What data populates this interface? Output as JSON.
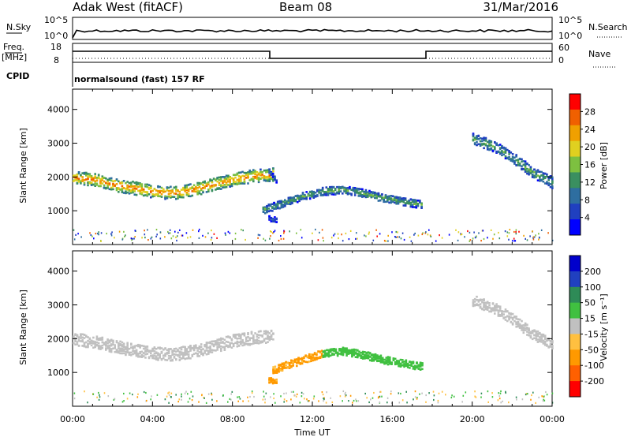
{
  "header": {
    "site": "Adak West (fitACF)",
    "beam": "Beam 08",
    "date": "31/Mar/2016"
  },
  "strip": {
    "nsky_label": "N.Sky",
    "nsearch_label": "N.Search",
    "freq_label_1": "Freq.",
    "freq_label_2": "[MHz]",
    "nave_label": "Nave",
    "cpid_label": "CPID",
    "cpid_text": "normalsound (fast) 157 RF",
    "noise_ticks_left": [
      "10^5",
      "10^0"
    ],
    "noise_ticks_right": [
      "10^5",
      "10^0"
    ],
    "freq_ticks": [
      "18",
      "8"
    ],
    "nave_ticks": [
      "60",
      "0"
    ]
  },
  "colors": {
    "power_scale": [
      "#0000ff",
      "#2040c0",
      "#2e6ea0",
      "#3a8f60",
      "#7dc040",
      "#e0d020",
      "#f0a000",
      "#f06000",
      "#ff0000"
    ],
    "velocity_scale": [
      "#ff0000",
      "#ff6000",
      "#ff9900",
      "#ffc040",
      "#c0c0c0",
      "#40c040",
      "#2e8b57",
      "#2040c0",
      "#0000cc"
    ]
  },
  "chart_data": [
    {
      "type": "heatmap",
      "title": "",
      "xlabel": "",
      "ylabel": "Slant Range [km]",
      "xlim": [
        "00:00",
        "24:00"
      ],
      "ylim": [
        0,
        4600
      ],
      "yticks": [
        1000,
        2000,
        3000,
        4000
      ],
      "colorbar": {
        "label": "Power [dB]",
        "ticks": [
          4,
          8,
          12,
          16,
          20,
          24,
          28
        ]
      },
      "features": [
        {
          "name": "band-1",
          "points": [
            [
              0.0,
              2000
            ],
            [
              1.0,
              1950
            ],
            [
              2.0,
              1800
            ],
            [
              3.0,
              1700
            ],
            [
              4.0,
              1600
            ],
            [
              5.0,
              1550
            ],
            [
              6.0,
              1650
            ],
            [
              7.0,
              1800
            ],
            [
              8.0,
              1950
            ],
            [
              9.0,
              2050
            ],
            [
              10.0,
              2100
            ]
          ],
          "width": 380,
          "peak_power": 26
        },
        {
          "name": "band-2",
          "points": [
            [
              9.5,
              1050
            ],
            [
              10.5,
              1250
            ],
            [
              11.5,
              1450
            ],
            [
              12.5,
              1600
            ],
            [
              13.5,
              1650
            ],
            [
              14.5,
              1550
            ],
            [
              15.5,
              1400
            ],
            [
              16.5,
              1300
            ],
            [
              17.5,
              1200
            ]
          ],
          "width": 230,
          "peak_power": 14
        },
        {
          "name": "band-3",
          "points": [
            [
              9.8,
              2200
            ],
            [
              10.2,
              1900
            ]
          ],
          "width": 150,
          "peak_power": 8
        },
        {
          "name": "band-4",
          "points": [
            [
              9.8,
              800
            ],
            [
              10.2,
              750
            ]
          ],
          "width": 150,
          "peak_power": 6
        },
        {
          "name": "band-5",
          "points": [
            [
              20.0,
              3150
            ],
            [
              21.0,
              2950
            ],
            [
              22.0,
              2600
            ],
            [
              23.0,
              2150
            ],
            [
              24.0,
              1850
            ]
          ],
          "width": 330,
          "peak_power": 14
        }
      ]
    },
    {
      "type": "heatmap",
      "title": "",
      "xlabel": "Time UT",
      "ylabel": "Slant Range [km]",
      "xlim": [
        "00:00",
        "24:00"
      ],
      "ylim": [
        0,
        4600
      ],
      "yticks": [
        1000,
        2000,
        3000,
        4000
      ],
      "xticks": [
        "00:00",
        "04:00",
        "08:00",
        "12:00",
        "16:00",
        "20:00",
        "00:00"
      ],
      "colorbar": {
        "label": "Velocity [m s⁻¹]",
        "ticks": [
          200,
          100,
          50,
          15,
          -15,
          -50,
          -100,
          -200
        ]
      },
      "features": [
        {
          "name": "band-1",
          "points": [
            [
              0.0,
              2000
            ],
            [
              1.0,
              1950
            ],
            [
              2.0,
              1800
            ],
            [
              3.0,
              1700
            ],
            [
              4.0,
              1600
            ],
            [
              5.0,
              1550
            ],
            [
              6.0,
              1650
            ],
            [
              7.0,
              1800
            ],
            [
              8.0,
              1950
            ],
            [
              9.0,
              2050
            ],
            [
              10.0,
              2100
            ]
          ],
          "width": 380,
          "velocity": 0
        },
        {
          "name": "band-2a",
          "points": [
            [
              10.0,
              1100
            ],
            [
              11.0,
              1300
            ],
            [
              12.0,
              1500
            ],
            [
              12.5,
              1600
            ]
          ],
          "width": 230,
          "velocity": -60
        },
        {
          "name": "band-2b",
          "points": [
            [
              12.5,
              1600
            ],
            [
              13.5,
              1650
            ],
            [
              14.5,
              1550
            ],
            [
              15.5,
              1400
            ],
            [
              16.5,
              1300
            ],
            [
              17.5,
              1200
            ]
          ],
          "width": 230,
          "velocity": 30
        },
        {
          "name": "band-3",
          "points": [
            [
              9.8,
              800
            ],
            [
              10.2,
              750
            ]
          ],
          "width": 150,
          "velocity": -60
        },
        {
          "name": "band-5",
          "points": [
            [
              20.0,
              3150
            ],
            [
              21.0,
              2950
            ],
            [
              22.0,
              2600
            ],
            [
              23.0,
              2150
            ],
            [
              24.0,
              1850
            ]
          ],
          "width": 330,
          "velocity": 0
        }
      ]
    }
  ]
}
